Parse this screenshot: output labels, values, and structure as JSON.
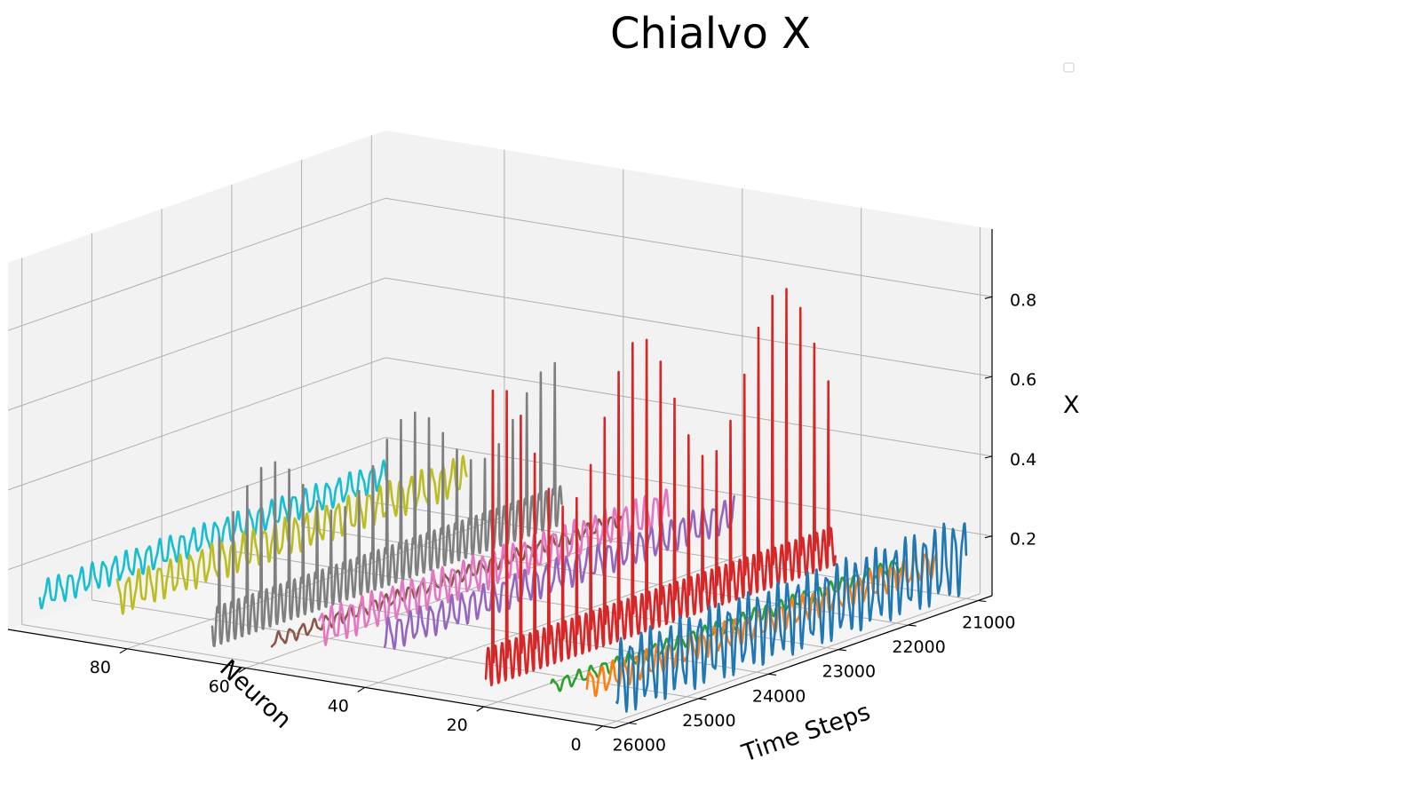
{
  "chart_data": {
    "type": "line",
    "title": "Chialvo X",
    "xlabel": "Time Steps",
    "ylabel": "Neuron",
    "zlabel": "X",
    "xlim": [
      20800,
      26200
    ],
    "ylim": [
      -2,
      100
    ],
    "zlim": [
      0.05,
      0.97
    ],
    "x_ticks": [
      21000,
      22000,
      23000,
      24000,
      25000,
      26000
    ],
    "y_ticks": [
      0,
      20,
      40,
      60,
      80
    ],
    "z_ticks": [
      0.2,
      0.4,
      0.6,
      0.8
    ],
    "grid": true,
    "legend": "top-right (empty)",
    "time_range": [
      21000,
      26000
    ],
    "series": [
      {
        "neuron": 0,
        "color": "#1f77b4",
        "pattern": "oscillation",
        "base": 0.16,
        "amplitude": 0.08,
        "period": 140
      },
      {
        "neuron": 5,
        "color": "#ff7f0e",
        "pattern": "oscillation",
        "base": 0.13,
        "amplitude": 0.03,
        "period": 160
      },
      {
        "neuron": 11,
        "color": "#2ca02c",
        "pattern": "oscillation",
        "base": 0.11,
        "amplitude": 0.015,
        "period": 180
      },
      {
        "neuron": 22,
        "color": "#d62728",
        "pattern": "spiking",
        "base": 0.13,
        "amplitude": 0.05,
        "period": 200,
        "spike_height": 0.85
      },
      {
        "neuron": 39,
        "color": "#9467bd",
        "pattern": "oscillation",
        "base": 0.17,
        "amplitude": 0.035,
        "period": 150
      },
      {
        "neuron": 50,
        "color": "#e377c2",
        "pattern": "oscillation",
        "base": 0.16,
        "amplitude": 0.04,
        "period": 145
      },
      {
        "neuron": 58,
        "color": "#8c564b",
        "pattern": "oscillation",
        "base": 0.11,
        "amplitude": 0.015,
        "period": 170
      },
      {
        "neuron": 68,
        "color": "#7f7f7f",
        "pattern": "spiking",
        "base": 0.12,
        "amplitude": 0.05,
        "period": 200,
        "spike_height": 0.48
      },
      {
        "neuron": 84,
        "color": "#bcbd22",
        "pattern": "oscillation",
        "base": 0.16,
        "amplitude": 0.04,
        "period": 150
      },
      {
        "neuron": 97,
        "color": "#17becf",
        "pattern": "oscillation",
        "base": 0.13,
        "amplitude": 0.03,
        "period": 160
      }
    ]
  }
}
